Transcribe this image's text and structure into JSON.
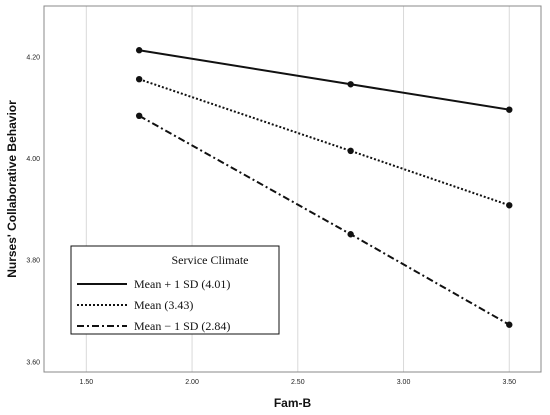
{
  "chart_data": {
    "type": "line",
    "xlabel": "Fam-B",
    "ylabel": "Nurses' Collaborative Behavior",
    "xlim": [
      1.3,
      3.65
    ],
    "ylim": [
      3.58,
      4.3
    ],
    "xticks": [
      1.5,
      2.0,
      2.5,
      3.0,
      3.5
    ],
    "xtick_labels": [
      "1.50",
      "2.00",
      "2.50",
      "3.00",
      "3.50"
    ],
    "yticks": [
      3.6,
      3.8,
      4.0,
      4.2
    ],
    "ytick_labels": [
      "3.60",
      "3.80",
      "4.00",
      "4.20"
    ],
    "grid": "vertical",
    "x": [
      1.75,
      2.75,
      3.5
    ],
    "series": [
      {
        "name": "Mean + 1 SD (4.01)",
        "style": "solid",
        "values": [
          4.213,
          4.146,
          4.096
        ]
      },
      {
        "name": "Mean (3.43)",
        "style": "dotted",
        "values": [
          4.156,
          4.015,
          3.908
        ]
      },
      {
        "name": "Mean − 1 SD (2.84)",
        "style": "dashdot",
        "values": [
          4.084,
          3.851,
          3.673
        ]
      }
    ],
    "legend": {
      "title": "Service Climate",
      "placement": "bottom-left"
    },
    "colors": {
      "line": "#111111",
      "grid": "#d9d9d9",
      "axis": "#888888"
    }
  }
}
